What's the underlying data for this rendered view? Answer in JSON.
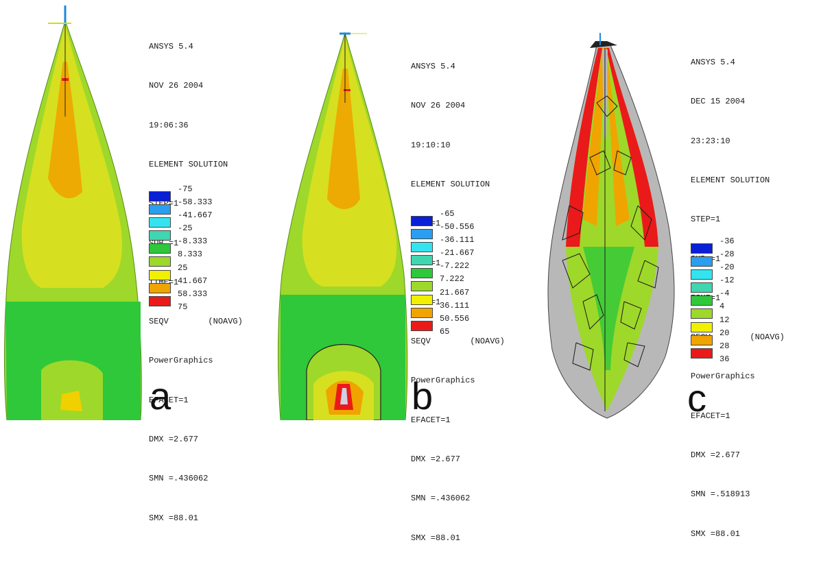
{
  "panels": [
    {
      "letter": "a",
      "info": [
        "ANSYS 5.4",
        "NOV 26 2004",
        "19:06:36",
        "ELEMENT SOLUTION",
        "STEP=1",
        "SUB =1",
        "TIME=1",
        "SEQV        (NOAVG)",
        "PowerGraphics",
        "EFACET=1",
        "DMX =2.677",
        "SMN =.436062",
        "SMX =88.01"
      ],
      "legend": [
        "-75",
        "-58.333",
        "-41.667",
        "-25",
        "-8.333",
        "8.333",
        "25",
        "41.667",
        "58.333",
        "75"
      ]
    },
    {
      "letter": "b",
      "info": [
        "ANSYS 5.4",
        "NOV 26 2004",
        "19:10:10",
        "ELEMENT SOLUTION",
        "STEP=1",
        "SUB =1",
        "TIME=1",
        "SEQV        (NOAVG)",
        "PowerGraphics",
        "EFACET=1",
        "DMX =2.677",
        "SMN =.436062",
        "SMX =88.01"
      ],
      "legend": [
        "-65",
        "-50.556",
        "-36.111",
        "-21.667",
        "-7.222",
        "7.222",
        "21.667",
        "36.111",
        "50.556",
        "65"
      ]
    },
    {
      "letter": "c",
      "info": [
        "ANSYS 5.4",
        "DEC 15 2004",
        "23:23:10",
        "ELEMENT SOLUTION",
        "STEP=1",
        "SUB =1",
        "TIME=1",
        "SEQV        (NOAVG)",
        "PowerGraphics",
        "EFACET=1",
        "DMX =2.677",
        "SMN =.518913",
        "SMX =88.01"
      ],
      "legend": [
        "-36",
        "-28",
        "-20",
        "-12",
        "-4",
        "4",
        "12",
        "20",
        "28",
        "36"
      ]
    }
  ],
  "legend_colors": [
    "#0a1fd8",
    "#2a9ef0",
    "#33e4f0",
    "#3fd6b0",
    "#2ec83a",
    "#9ed82a",
    "#f0f000",
    "#f0a400",
    "#ea1a1a",
    "#ffffff"
  ]
}
